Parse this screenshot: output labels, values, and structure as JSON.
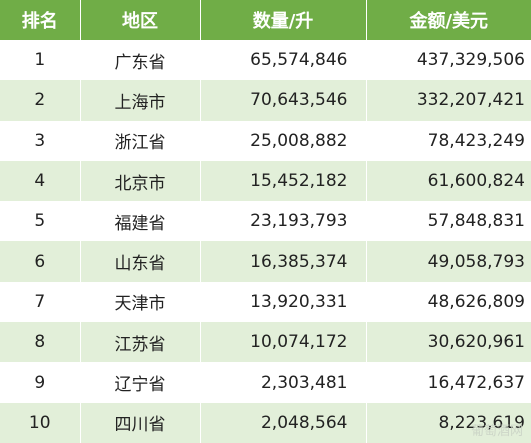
{
  "colors": {
    "header_bg": "#70ad47",
    "header_text": "#ffffff",
    "stripe": "#e2efd9",
    "row_bg": "#ffffff",
    "text": "#222222"
  },
  "headers": {
    "rank": "排名",
    "region": "地区",
    "quantity": "数量/升",
    "amount": "金额/美元"
  },
  "rows": [
    {
      "rank": "1",
      "region": "广东省",
      "quantity": "65,574,846",
      "amount": "437,329,506"
    },
    {
      "rank": "2",
      "region": "上海市",
      "quantity": "70,643,546",
      "amount": "332,207,421"
    },
    {
      "rank": "3",
      "region": "浙江省",
      "quantity": "25,008,882",
      "amount": "78,423,249"
    },
    {
      "rank": "4",
      "region": "北京市",
      "quantity": "15,452,182",
      "amount": "61,600,824"
    },
    {
      "rank": "5",
      "region": "福建省",
      "quantity": "23,193,793",
      "amount": "57,848,831"
    },
    {
      "rank": "6",
      "region": "山东省",
      "quantity": "16,385,374",
      "amount": "49,058,793"
    },
    {
      "rank": "7",
      "region": "天津市",
      "quantity": "13,920,331",
      "amount": "48,626,809"
    },
    {
      "rank": "8",
      "region": "江苏省",
      "quantity": "10,074,172",
      "amount": "30,620,961"
    },
    {
      "rank": "9",
      "region": "辽宁省",
      "quantity": "2,303,481",
      "amount": "16,472,637"
    },
    {
      "rank": "10",
      "region": "四川省",
      "quantity": "2,048,564",
      "amount": "8,223,619"
    }
  ],
  "watermark": "葡萄酒网"
}
